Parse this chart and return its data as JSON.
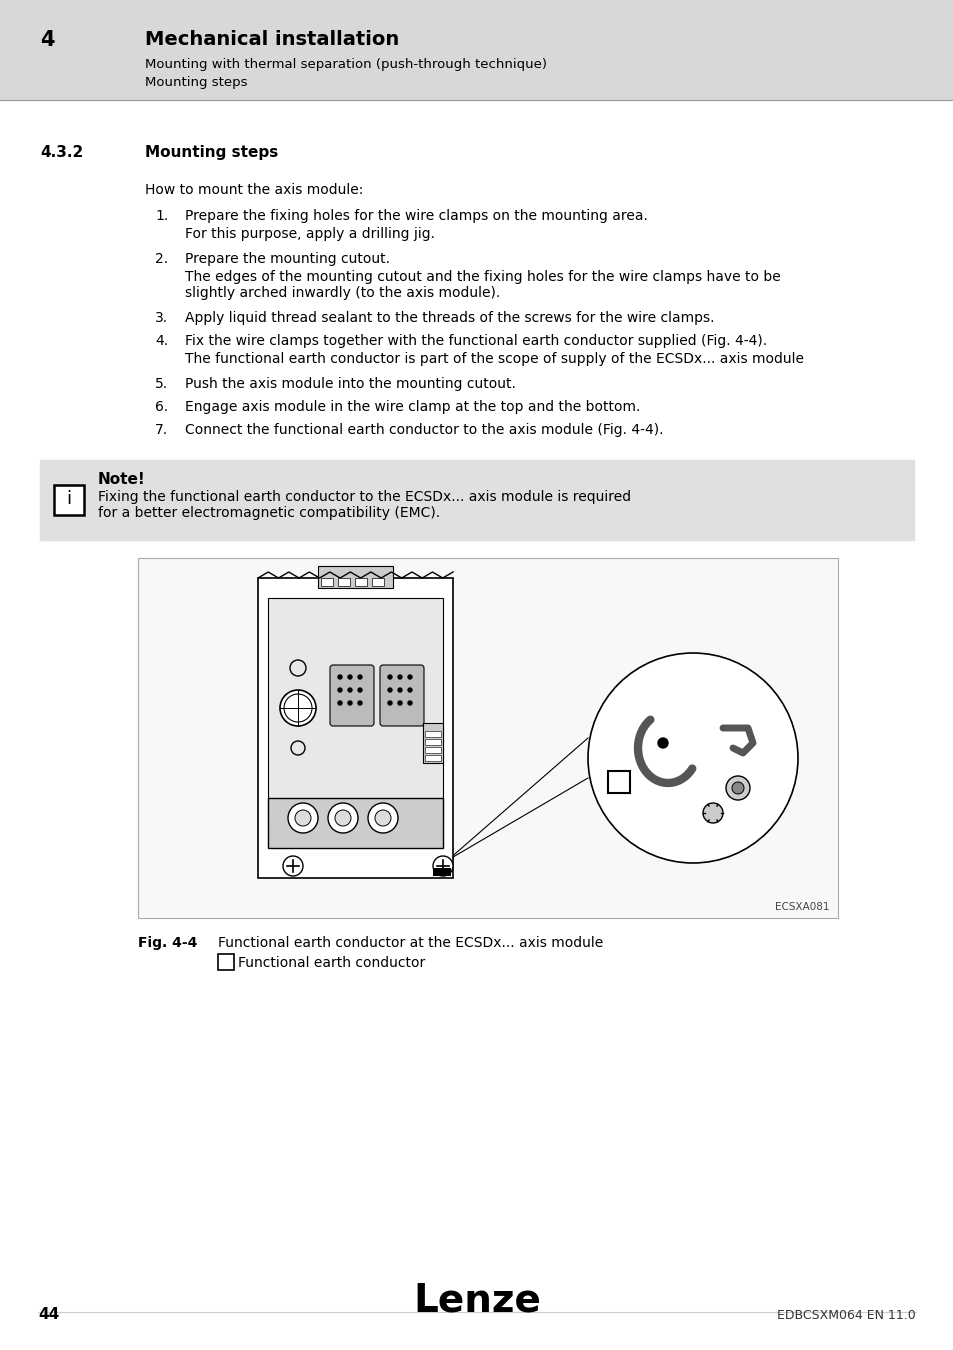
{
  "page_bg": "#ffffff",
  "header_bg": "#d8d8d8",
  "header_number": "4",
  "header_title": "Mechanical installation",
  "header_sub1": "Mounting with thermal separation (push-through technique)",
  "header_sub2": "Mounting steps",
  "section_number": "4.3.2",
  "section_title": "Mounting steps",
  "intro_text": "How to mount the axis module:",
  "steps": [
    {
      "num": "1.",
      "main": "Prepare the fixing holes for the wire clamps on the mounting area.",
      "sub": "For this purpose, apply a drilling jig."
    },
    {
      "num": "2.",
      "main": "Prepare the mounting cutout.",
      "sub": "The edges of the mounting cutout and the fixing holes for the wire clamps have to be\nslightly arched inwardly (to the axis module)."
    },
    {
      "num": "3.",
      "main": "Apply liquid thread sealant to the threads of the screws for the wire clamps.",
      "sub": ""
    },
    {
      "num": "4.",
      "main": "Fix the wire clamps together with the functional earth conductor supplied (Fig. 4-4).",
      "sub": "The functional earth conductor is part of the scope of supply of the ECSDx... axis module"
    },
    {
      "num": "5.",
      "main": "Push the axis module into the mounting cutout.",
      "sub": ""
    },
    {
      "num": "6.",
      "main": "Engage axis module in the wire clamp at the top and the bottom.",
      "sub": ""
    },
    {
      "num": "7.",
      "main": "Connect the functional earth conductor to the axis module (Fig. 4-4).",
      "sub": ""
    }
  ],
  "note_bg": "#e0e0e0",
  "note_title": "Note!",
  "note_text_line1": "Fixing the functional earth conductor to the ECSDx... axis module is required",
  "note_text_line2": "for a better electromagnetic compatibility (EMC).",
  "fig_caption_label": "Fig. 4-4",
  "fig_caption_text": "Functional earth conductor at the ECSDx... axis module",
  "fig_label_a_desc": "Functional earth conductor",
  "fig_code": "ECSXA081",
  "footer_page": "44",
  "footer_logo": "Lenze",
  "footer_doc": "EDBCSXM064 EN 11.0"
}
